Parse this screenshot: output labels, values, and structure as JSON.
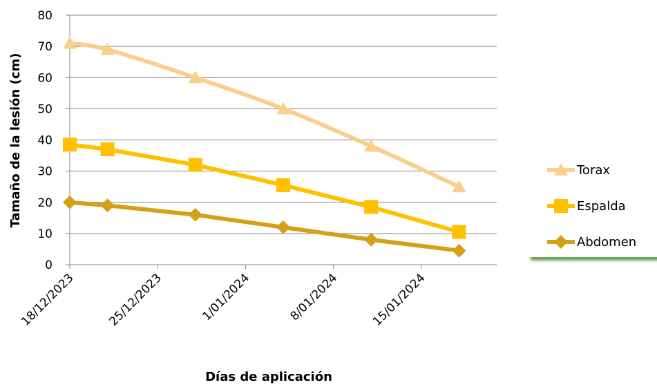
{
  "chart_data": {
    "type": "line",
    "xlabel": "Días de aplicación",
    "ylabel": "Tamaño de la lesión (cm)",
    "ylim": [
      0,
      80
    ],
    "yticks": [
      0,
      10,
      20,
      30,
      40,
      50,
      60,
      70,
      80
    ],
    "xlim": [
      "2023-12-18",
      "2024-01-21"
    ],
    "xticks": [
      "2023-12-18",
      "2023-12-25",
      "2024-01-01",
      "2024-01-08",
      "2024-01-15"
    ],
    "xtick_labels": [
      "18/12/2023",
      "25/12/2023",
      "1/01/2024",
      "8/01/2024",
      "15/01/2024"
    ],
    "x": [
      "2023-12-18",
      "2023-12-21",
      "2023-12-28",
      "2024-01-04",
      "2024-01-11",
      "2024-01-18"
    ],
    "series": [
      {
        "name": "Torax",
        "marker": "triangle",
        "color": "#F9CF8E",
        "values": [
          71,
          69,
          60,
          50,
          38,
          25
        ]
      },
      {
        "name": "Espalda",
        "marker": "square",
        "color": "#FFC000",
        "values": [
          38.5,
          37,
          32,
          25.5,
          18.5,
          10.5
        ]
      },
      {
        "name": "Abdomen",
        "marker": "diamond",
        "color": "#D4A017",
        "values": [
          20,
          19,
          16,
          12,
          8,
          4.5
        ]
      }
    ],
    "grid": true,
    "legend_position": "right"
  }
}
